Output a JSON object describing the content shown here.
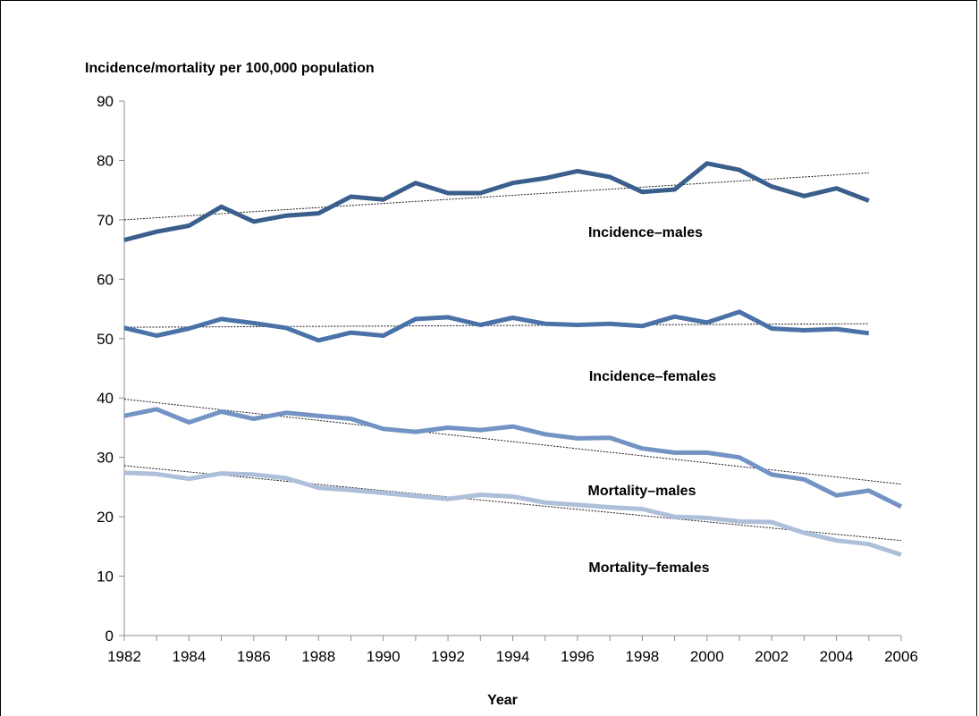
{
  "chart_data": {
    "type": "line",
    "title": "Incidence/mortality  per 100,000 population",
    "xlabel": "Year",
    "ylabel": "",
    "ylim": [
      0,
      90
    ],
    "xlim": [
      1982,
      2006
    ],
    "y_ticks": [
      "0",
      "10",
      "20",
      "30",
      "40",
      "50",
      "60",
      "70",
      "80",
      "90"
    ],
    "x_ticks": [
      "1982",
      "1984",
      "1986",
      "1988",
      "1990",
      "1992",
      "1994",
      "1996",
      "1998",
      "2000",
      "2002",
      "2004",
      "2006"
    ],
    "grid": false,
    "legend": "none",
    "series": [
      {
        "name": "Incidence–males",
        "color": "#3a5f8c",
        "x": [
          1982,
          1983,
          1984,
          1985,
          1986,
          1987,
          1988,
          1989,
          1990,
          1991,
          1992,
          1993,
          1994,
          1995,
          1996,
          1997,
          1998,
          1999,
          2000,
          2001,
          2002,
          2003,
          2004,
          2005
        ],
        "values": [
          66.6,
          68.0,
          69.0,
          72.2,
          69.7,
          70.7,
          71.1,
          73.9,
          73.4,
          76.2,
          74.5,
          74.5,
          76.2,
          77.0,
          78.2,
          77.2,
          74.7,
          75.1,
          79.5,
          78.4,
          75.6,
          74.0,
          75.3,
          73.2
        ],
        "trend": [
          70.0,
          77.9
        ]
      },
      {
        "name": "Incidence–females",
        "color": "#4a72a8",
        "x": [
          1982,
          1983,
          1984,
          1985,
          1986,
          1987,
          1988,
          1989,
          1990,
          1991,
          1992,
          1993,
          1994,
          1995,
          1996,
          1997,
          1998,
          1999,
          2000,
          2001,
          2002,
          2003,
          2004,
          2005
        ],
        "values": [
          51.8,
          50.5,
          51.7,
          53.3,
          52.6,
          51.8,
          49.7,
          51.0,
          50.5,
          53.3,
          53.6,
          52.3,
          53.5,
          52.5,
          52.3,
          52.5,
          52.1,
          53.7,
          52.7,
          54.5,
          51.7,
          51.4,
          51.6,
          50.9
        ],
        "trend": [
          51.9,
          52.5
        ]
      },
      {
        "name": "Mortality–males",
        "color": "#7393c4",
        "x": [
          1982,
          1983,
          1984,
          1985,
          1986,
          1987,
          1988,
          1989,
          1990,
          1991,
          1992,
          1993,
          1994,
          1995,
          1996,
          1997,
          1998,
          1999,
          2000,
          2001,
          2002,
          2003,
          2004,
          2005,
          2006
        ],
        "values": [
          37.0,
          38.1,
          35.9,
          37.7,
          36.5,
          37.5,
          37.0,
          36.5,
          34.8,
          34.3,
          35.0,
          34.6,
          35.2,
          33.9,
          33.2,
          33.3,
          31.5,
          30.8,
          30.8,
          30.0,
          27.1,
          26.3,
          23.6,
          24.4,
          21.7
        ],
        "trend": [
          39.8,
          25.5
        ]
      },
      {
        "name": "Mortality–females",
        "color": "#aebfd9",
        "x": [
          1982,
          1983,
          1984,
          1985,
          1986,
          1987,
          1988,
          1989,
          1990,
          1991,
          1992,
          1993,
          1994,
          1995,
          1996,
          1997,
          1998,
          1999,
          2000,
          2001,
          2002,
          2003,
          2004,
          2005,
          2006
        ],
        "values": [
          27.4,
          27.2,
          26.4,
          27.3,
          27.1,
          26.5,
          24.9,
          24.5,
          24.0,
          23.5,
          23.0,
          23.7,
          23.4,
          22.4,
          22.0,
          21.6,
          21.3,
          20.0,
          19.8,
          19.2,
          19.1,
          17.3,
          16.0,
          15.4,
          13.6
        ],
        "trend": [
          28.6,
          16.0
        ]
      }
    ]
  }
}
